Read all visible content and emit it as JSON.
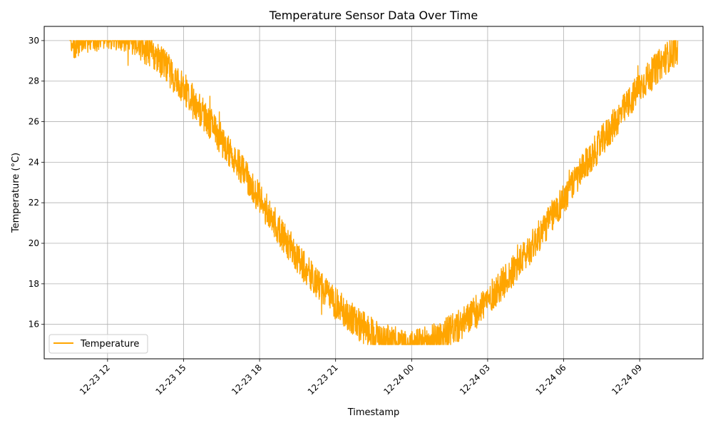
{
  "chart_data": {
    "type": "line",
    "title": "Temperature Sensor Data Over Time",
    "xlabel": "Timestamp",
    "ylabel": "Temperature (°C)",
    "grid": true,
    "legend_position": "lower-left",
    "x_start": "2023-12-23 10:30",
    "x_end": "2023-12-24 10:30",
    "xlim": [
      "2023-12-23 09:30",
      "2023-12-24 11:30"
    ],
    "ylim": [
      14.3,
      30.7
    ],
    "y_ticks": [
      16,
      18,
      20,
      22,
      24,
      26,
      28,
      30
    ],
    "x_ticks": [
      "2023-12-23 12:00",
      "2023-12-23 15:00",
      "2023-12-23 18:00",
      "2023-12-23 21:00",
      "2023-12-24 00:00",
      "2023-12-24 03:00",
      "2023-12-24 06:00",
      "2023-12-24 09:00"
    ],
    "x_tick_labels": [
      "12-23 12",
      "12-23 15",
      "12-23 18",
      "12-23 21",
      "12-24 00",
      "12-24 03",
      "12-24 06",
      "12-24 09"
    ],
    "series": [
      {
        "name": "Temperature",
        "color": "#ffa500",
        "clip_range": [
          15.0,
          30.0
        ],
        "noise_amplitude": 0.8,
        "x": [
          "2023-12-23 10:30",
          "2023-12-23 11:00",
          "2023-12-23 12:00",
          "2023-12-23 13:00",
          "2023-12-23 14:00",
          "2023-12-23 15:00",
          "2023-12-23 16:00",
          "2023-12-23 17:00",
          "2023-12-23 18:00",
          "2023-12-23 19:00",
          "2023-12-23 20:00",
          "2023-12-23 21:00",
          "2023-12-23 22:00",
          "2023-12-23 23:00",
          "2023-12-24 00:00",
          "2023-12-24 01:00",
          "2023-12-24 02:00",
          "2023-12-24 03:00",
          "2023-12-24 04:00",
          "2023-12-24 05:00",
          "2023-12-24 06:00",
          "2023-12-24 07:00",
          "2023-12-24 08:00",
          "2023-12-24 09:00",
          "2023-12-24 10:00",
          "2023-12-24 10:30"
        ],
        "y": [
          29.8,
          30.1,
          30.4,
          30.1,
          29.1,
          27.7,
          26.0,
          24.2,
          22.2,
          20.2,
          18.4,
          17.0,
          15.9,
          15.2,
          14.9,
          15.3,
          16.0,
          17.2,
          18.6,
          20.3,
          22.2,
          24.1,
          25.9,
          27.7,
          29.1,
          29.6
        ]
      }
    ]
  }
}
